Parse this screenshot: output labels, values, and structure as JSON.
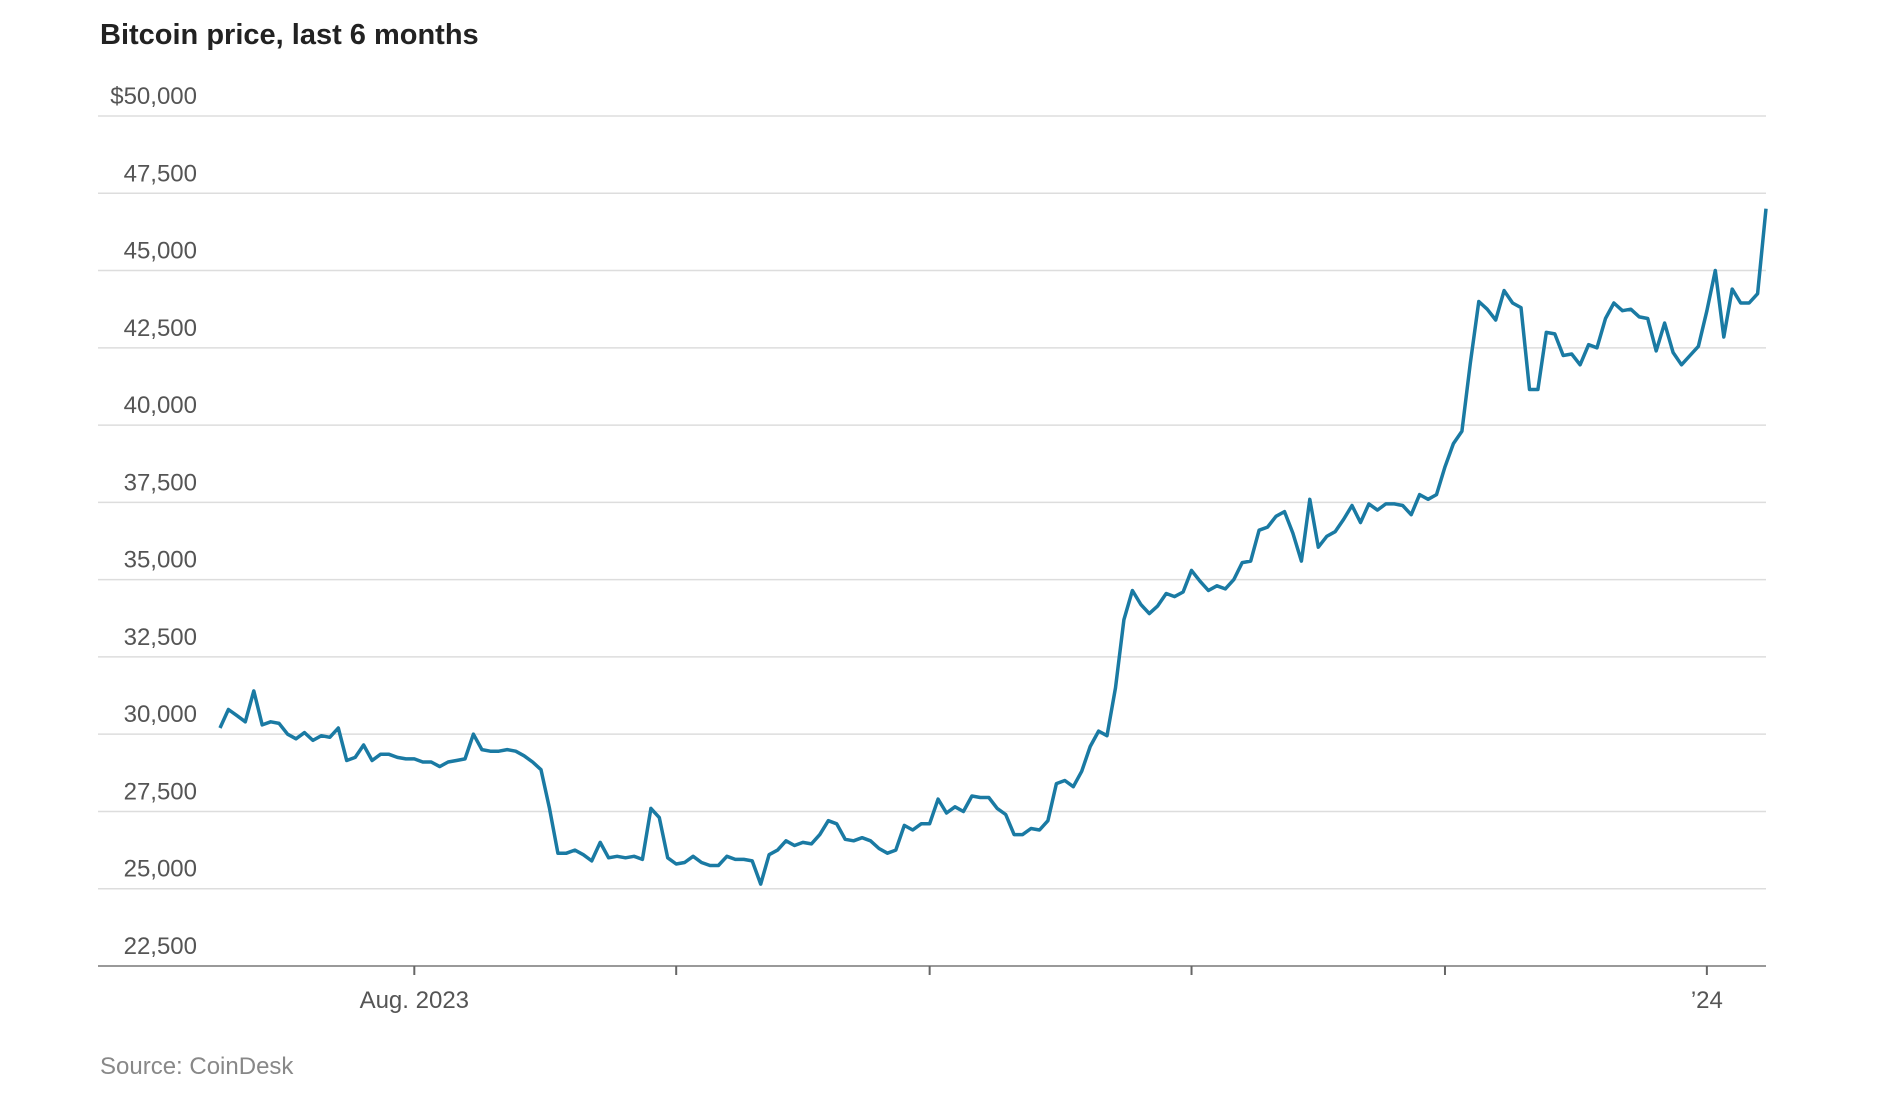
{
  "chart_data": {
    "type": "line",
    "title": "Bitcoin price, last 6 months",
    "source": "Source: CoinDesk",
    "categories": [
      null,
      null,
      null,
      null,
      null,
      null,
      null,
      null,
      null,
      null,
      null,
      null,
      null,
      null,
      null,
      null,
      null,
      null,
      null,
      null,
      null,
      null,
      null,
      "Aug. 2023",
      null,
      null,
      null,
      null,
      null,
      null,
      null,
      null,
      null,
      null,
      null,
      null,
      null,
      null,
      null,
      null,
      null,
      null,
      null,
      null,
      null,
      null,
      null,
      null,
      null,
      null,
      null,
      null,
      null,
      null,
      null,
      null,
      null,
      null,
      null,
      null,
      null,
      null,
      null,
      null,
      null,
      null,
      null,
      null,
      null,
      null,
      null,
      null,
      null,
      null,
      null,
      null,
      null,
      null,
      null,
      null,
      null,
      null,
      null,
      null,
      null,
      null,
      null,
      null,
      null,
      null,
      null,
      null,
      null,
      null,
      null,
      null,
      null,
      null,
      null,
      null,
      null,
      null,
      null,
      null,
      null,
      null,
      null,
      null,
      null,
      null,
      null,
      null,
      null,
      null,
      null,
      null,
      null,
      null,
      null,
      null,
      null,
      null,
      null,
      null,
      null,
      null,
      null,
      null,
      null,
      null,
      null,
      null,
      null,
      null,
      null,
      null,
      null,
      null,
      null,
      null,
      null,
      null,
      null,
      null,
      null,
      null,
      null,
      null,
      null,
      null,
      null,
      null,
      null,
      null,
      null,
      null,
      null,
      null,
      null,
      null,
      null,
      null,
      null,
      null,
      null,
      null,
      null,
      null,
      null,
      null,
      null,
      null,
      null,
      null,
      null,
      null,
      "’24",
      null,
      null,
      null,
      null,
      null,
      null,
      null
    ],
    "xticks": [
      23,
      54,
      84,
      115,
      145,
      176
    ],
    "series": [
      {
        "name": "Bitcoin price",
        "color": "#1a7aa3",
        "values": [
          30200,
          30800,
          30600,
          30400,
          31400,
          30300,
          30400,
          30350,
          30000,
          29850,
          30050,
          29800,
          29950,
          29900,
          30200,
          29150,
          29250,
          29650,
          29150,
          29350,
          29350,
          29250,
          29200,
          29200,
          29100,
          29100,
          28950,
          29100,
          29150,
          29200,
          30000,
          29500,
          29450,
          29450,
          29500,
          29450,
          29300,
          29100,
          28850,
          27600,
          26150,
          26150,
          26250,
          26100,
          25900,
          26500,
          26000,
          26050,
          26000,
          26050,
          25950,
          27600,
          27300,
          26000,
          25800,
          25850,
          26050,
          25850,
          25750,
          25750,
          26050,
          25950,
          25950,
          25900,
          25150,
          26100,
          26250,
          26550,
          26400,
          26500,
          26450,
          26750,
          27200,
          27100,
          26600,
          26550,
          26650,
          26550,
          26300,
          26150,
          26250,
          27050,
          26900,
          27100,
          27100,
          27900,
          27450,
          27650,
          27500,
          28000,
          27950,
          27950,
          27600,
          27400,
          26750,
          26750,
          26950,
          26900,
          27200,
          28400,
          28500,
          28300,
          28800,
          29600,
          30100,
          29950,
          31500,
          33700,
          34650,
          34200,
          33900,
          34150,
          34550,
          34450,
          34600,
          35300,
          34950,
          34650,
          34800,
          34700,
          35000,
          35550,
          35600,
          36600,
          36700,
          37050,
          37200,
          36500,
          35600,
          37600,
          36050,
          36400,
          36550,
          36950,
          37400,
          36850,
          37450,
          37250,
          37450,
          37450,
          37400,
          37100,
          37750,
          37600,
          37750,
          38650,
          39400,
          39800,
          42000,
          44000,
          43750,
          43400,
          44350,
          43950,
          43800,
          41150,
          41150,
          43000,
          42950,
          42250,
          42300,
          41950,
          42600,
          42500,
          43450,
          43950,
          43700,
          43750,
          43500,
          43450,
          42400,
          43300,
          42350,
          41950,
          42250,
          42550,
          43700,
          45000,
          42850,
          44400,
          43950,
          43950,
          44250,
          47000
        ]
      }
    ],
    "ylim": [
      22500,
      50000
    ],
    "yticks": [
      {
        "value": 22500,
        "label": "22,500"
      },
      {
        "value": 25000,
        "label": "25,000"
      },
      {
        "value": 27500,
        "label": "27,500"
      },
      {
        "value": 30000,
        "label": "30,000"
      },
      {
        "value": 32500,
        "label": "32,500"
      },
      {
        "value": 35000,
        "label": "35,000"
      },
      {
        "value": 37500,
        "label": "37,500"
      },
      {
        "value": 40000,
        "label": "40,000"
      },
      {
        "value": 42500,
        "label": "42,500"
      },
      {
        "value": 45000,
        "label": "45,000"
      },
      {
        "value": 47500,
        "label": "47,500"
      },
      {
        "value": 50000,
        "label": "$50,000"
      }
    ],
    "grid": true
  }
}
